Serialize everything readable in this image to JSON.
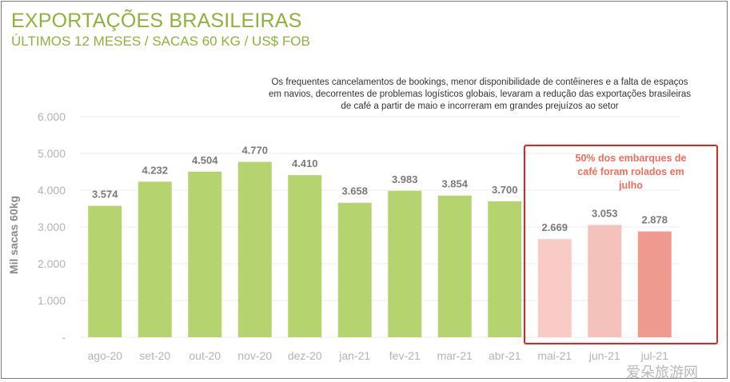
{
  "header": {
    "title": "EXPORTAÇÕES BRASILEIRAS",
    "subtitle": "ÚLTIMOS 12 MESES / SACAS 60 KG / US$ FOB"
  },
  "annotations": {
    "note": "Os frequentes cancelamentos de bookings, menor disponibilidade de contêineres e a falta de espaços em navios, decorrentes de problemas logísticos globais, levaram a redução das exportações brasileiras de café a partir de maio e incorreram em grandes prejuízos ao setor",
    "callout": "50% dos embarques de café foram rolados em julho"
  },
  "watermark": "爱朵旅游网",
  "colors": {
    "title": "#8db33a",
    "bar_green": "#b5d36e",
    "bar_pink_light": "#f8cbc5",
    "bar_pink_mid": "#f5c2bb",
    "bar_pink_dark": "#ee9a8f",
    "callout": "#f26d5b",
    "box": "#e8231f"
  },
  "chart_data": {
    "type": "bar",
    "title": "EXPORTAÇÕES BRASILEIRAS",
    "subtitle": "ÚLTIMOS 12 MESES / SACAS 60 KG / US$ FOB",
    "ylabel": "Mil sacas 60kg",
    "ylim": [
      0,
      6000
    ],
    "yticks": [
      "-",
      "1.000",
      "2.000",
      "3.000",
      "4.000",
      "5.000",
      "6.000"
    ],
    "grid": true,
    "categories": [
      "ago-20",
      "set-20",
      "out-20",
      "nov-20",
      "dez-20",
      "jan-21",
      "fev-21",
      "mar-21",
      "abr-21",
      "mai-21",
      "jun-21",
      "jul-21"
    ],
    "values": [
      3574,
      4232,
      4504,
      4770,
      4410,
      3658,
      3983,
      3854,
      3700,
      2669,
      3053,
      2878
    ],
    "value_labels": [
      "3.574",
      "4.232",
      "4.504",
      "4.770",
      "4.410",
      "3.658",
      "3.983",
      "3.854",
      "3.700",
      "2.669",
      "3.053",
      "2.878"
    ],
    "bar_colors": [
      "#b5d36e",
      "#b5d36e",
      "#b5d36e",
      "#b5d36e",
      "#b5d36e",
      "#b5d36e",
      "#b5d36e",
      "#b5d36e",
      "#b5d36e",
      "#f8cbc5",
      "#f5c2bb",
      "#ee9a8f"
    ]
  }
}
